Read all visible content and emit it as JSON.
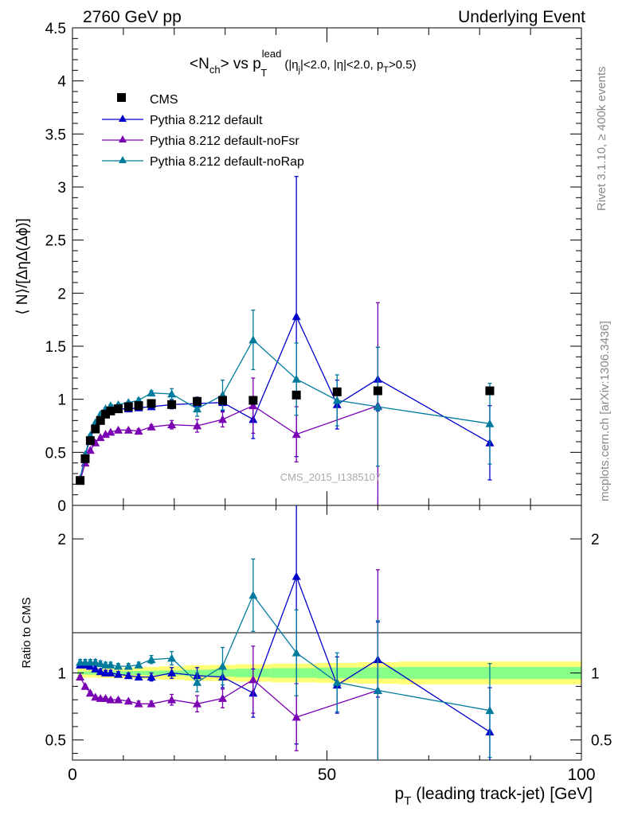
{
  "header": {
    "left": "2760 GeV pp",
    "right": "Underlying Event"
  },
  "side": {
    "rivet": "Rivet 3.1.10, ≥ 400k events",
    "mcplots": "mcplots.cern.ch [arXiv:1306.3436]"
  },
  "chart_data": {
    "type": "scatter",
    "title": {
      "lead_open": "<N",
      "lead_sub": "ch",
      "lead_close": "> vs p",
      "p_sup": "lead",
      "p_sub": "T",
      "cut_a": "(|η",
      "cut_a_sub": "j",
      "cut_b": "|<2.0, |η|<2.0, p",
      "cut_b_sub": "T",
      "cut_c": ">0.5)"
    },
    "watermark": "CMS_2015_I1385107",
    "xlabel_main": "p",
    "xlabel_sub": "T",
    "xlabel_rest": " (leading track-jet) [GeV]",
    "xlim": [
      0,
      100
    ],
    "x_ticks": [
      "0",
      "50",
      "100"
    ],
    "upper": {
      "ylabel": "⟨ N⟩/[ΔηΔ(Δϕ)]",
      "ylim": [
        0,
        4.5
      ],
      "y_ticks": [
        "0",
        "0.5",
        "1",
        "1.5",
        "2",
        "2.5",
        "3",
        "3.5",
        "4",
        "4.5"
      ]
    },
    "lower": {
      "ylabel": "Ratio to CMS",
      "ylim": [
        0.35,
        2.25
      ],
      "y_ticks": [
        "0.5",
        "1",
        "2"
      ]
    },
    "legend": {
      "position": "top-left",
      "entries": [
        "CMS",
        "Pythia 8.212 default",
        "Pythia 8.212 default-noFsr",
        "Pythia 8.212 default-noRap"
      ]
    },
    "x": [
      1.5,
      2.5,
      3.5,
      4.5,
      5.5,
      6.5,
      7.5,
      9.0,
      11.0,
      13.0,
      15.5,
      19.5,
      24.5,
      29.5,
      35.5,
      44.0,
      52.0,
      60.0,
      82.0
    ],
    "cms": [
      0.235,
      0.44,
      0.61,
      0.72,
      0.8,
      0.86,
      0.89,
      0.91,
      0.93,
      0.94,
      0.96,
      0.95,
      0.98,
      0.99,
      0.99,
      1.04,
      1.07,
      1.08,
      1.08
    ],
    "series": [
      {
        "name": "Pythia 8.212 default",
        "color": "#0000cc",
        "x": [
          1.5,
          2.5,
          3.5,
          4.5,
          5.5,
          6.5,
          7.5,
          9.0,
          11.0,
          13.0,
          15.5,
          19.5,
          24.5,
          29.5,
          35.5,
          44.0,
          52.0,
          60.0,
          82.0
        ],
        "values": [
          0.25,
          0.47,
          0.64,
          0.74,
          0.81,
          0.86,
          0.89,
          0.91,
          0.91,
          0.92,
          0.93,
          0.95,
          0.96,
          0.97,
          0.81,
          1.78,
          0.95,
          1.19,
          0.59
        ],
        "errors": [
          0.01,
          0.01,
          0.01,
          0.01,
          0.01,
          0.01,
          0.01,
          0.01,
          0.01,
          0.02,
          0.02,
          0.04,
          0.06,
          0.08,
          0.18,
          1.32,
          0.23,
          0.3,
          0.35
        ],
        "ratio": [
          1.06,
          1.06,
          1.05,
          1.03,
          1.01,
          1.0,
          1.0,
          0.99,
          0.98,
          0.97,
          0.97,
          1.0,
          0.98,
          0.97,
          0.85,
          1.72,
          0.91,
          1.1,
          0.56
        ],
        "ratio_errors": [
          0.02,
          0.02,
          0.02,
          0.02,
          0.02,
          0.02,
          0.02,
          0.02,
          0.02,
          0.02,
          0.03,
          0.04,
          0.06,
          0.08,
          0.18,
          1.25,
          0.21,
          0.28,
          0.33
        ]
      },
      {
        "name": "Pythia 8.212 default-noFsr",
        "color": "#7a00b3",
        "x": [
          1.5,
          2.5,
          3.5,
          4.5,
          5.5,
          6.5,
          7.5,
          9.0,
          11.0,
          13.0,
          15.5,
          19.5,
          24.5,
          29.5,
          35.5,
          44.0,
          60.0
        ],
        "values": [
          0.23,
          0.4,
          0.52,
          0.59,
          0.64,
          0.67,
          0.69,
          0.71,
          0.71,
          0.7,
          0.74,
          0.76,
          0.75,
          0.81,
          0.94,
          0.67,
          0.94
        ],
        "errors": [
          0.01,
          0.01,
          0.01,
          0.01,
          0.01,
          0.01,
          0.01,
          0.01,
          0.01,
          0.02,
          0.02,
          0.04,
          0.06,
          0.07,
          0.26,
          0.26,
          0.97
        ],
        "ratio": [
          0.97,
          0.9,
          0.85,
          0.82,
          0.81,
          0.81,
          0.8,
          0.8,
          0.79,
          0.77,
          0.77,
          0.8,
          0.77,
          0.81,
          0.95,
          0.67,
          0.87
        ],
        "ratio_errors": [
          0.01,
          0.01,
          0.01,
          0.01,
          0.01,
          0.01,
          0.01,
          0.01,
          0.01,
          0.02,
          0.02,
          0.04,
          0.06,
          0.07,
          0.25,
          0.25,
          0.9
        ]
      },
      {
        "name": "Pythia 8.212 default-noRap",
        "color": "#007b9e",
        "x": [
          1.5,
          2.5,
          3.5,
          4.5,
          5.5,
          6.5,
          7.5,
          9.0,
          11.0,
          13.0,
          15.5,
          19.5,
          24.5,
          29.5,
          35.5,
          44.0,
          52.0,
          60.0,
          82.0
        ],
        "values": [
          0.25,
          0.48,
          0.66,
          0.78,
          0.86,
          0.91,
          0.94,
          0.95,
          0.97,
          0.99,
          1.06,
          1.05,
          0.91,
          1.04,
          1.56,
          1.19,
          0.99,
          0.93,
          0.77
        ],
        "errors": [
          0.01,
          0.01,
          0.01,
          0.01,
          0.01,
          0.01,
          0.01,
          0.01,
          0.01,
          0.02,
          0.02,
          0.05,
          0.07,
          0.14,
          0.28,
          0.34,
          0.24,
          0.56,
          0.38
        ],
        "ratio": [
          1.08,
          1.08,
          1.08,
          1.08,
          1.07,
          1.06,
          1.06,
          1.05,
          1.05,
          1.06,
          1.1,
          1.11,
          0.93,
          1.05,
          1.58,
          1.15,
          0.93,
          0.87,
          0.72
        ],
        "ratio_errors": [
          0.02,
          0.02,
          0.02,
          0.02,
          0.02,
          0.02,
          0.02,
          0.02,
          0.02,
          0.02,
          0.03,
          0.05,
          0.07,
          0.14,
          0.27,
          0.32,
          0.22,
          0.52,
          0.35
        ]
      }
    ],
    "band": {
      "x_edges": [
        1,
        2,
        3,
        4,
        5,
        6,
        7,
        8,
        10,
        12,
        14,
        17,
        22,
        27,
        32,
        39,
        48,
        56,
        64,
        100
      ],
      "green_half": [
        0.012,
        0.012,
        0.012,
        0.012,
        0.013,
        0.013,
        0.013,
        0.014,
        0.014,
        0.015,
        0.016,
        0.018,
        0.024,
        0.028,
        0.032,
        0.036,
        0.04,
        0.042,
        0.045
      ],
      "yellow_half": [
        0.035,
        0.035,
        0.035,
        0.036,
        0.036,
        0.037,
        0.037,
        0.038,
        0.04,
        0.042,
        0.045,
        0.05,
        0.058,
        0.06,
        0.065,
        0.07,
        0.075,
        0.08,
        0.085
      ],
      "green_color": "#88ff88",
      "yellow_color": "#ffff77"
    }
  }
}
